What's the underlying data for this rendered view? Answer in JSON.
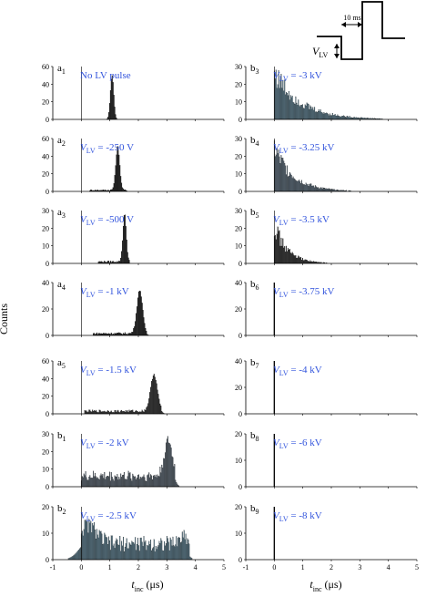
{
  "figure": {
    "ylabel": "Counts",
    "xlabel_main": "t",
    "xlabel_sub": "inc",
    "xlabel_unit": " (μs)",
    "inset": {
      "time_label": "10 ms",
      "voltage_label": "V",
      "voltage_sub": "LV"
    }
  },
  "chart_data": [
    {
      "type": "bar",
      "panel": "a",
      "index": "1",
      "annotation": "No LV pulse",
      "ylim": [
        0,
        60
      ],
      "yticks": [
        0,
        20,
        40,
        60
      ],
      "xlim": [
        -1,
        5
      ],
      "bar_color": "#111111",
      "peaks": [
        {
          "center": 1.08,
          "height": 50,
          "width": 0.06
        }
      ],
      "floor": {
        "from": 0.9,
        "to": 1.3,
        "level": 0
      }
    },
    {
      "type": "bar",
      "panel": "a",
      "index": "2",
      "annotation": "= -250 V",
      "ylim": [
        0,
        60
      ],
      "yticks": [
        0,
        20,
        40,
        60
      ],
      "xlim": [
        -1,
        5
      ],
      "bar_color": "#111111",
      "peaks": [
        {
          "center": 1.28,
          "height": 50,
          "width": 0.07
        }
      ],
      "floor": {
        "from": 0.3,
        "to": 1.6,
        "level": 1.5
      }
    },
    {
      "type": "bar",
      "panel": "a",
      "index": "3",
      "annotation": "= -500 V",
      "ylim": [
        0,
        30
      ],
      "yticks": [
        0,
        10,
        20,
        30
      ],
      "xlim": [
        -1,
        5
      ],
      "bar_color": "#111111",
      "peaks": [
        {
          "center": 1.52,
          "height": 27,
          "width": 0.06
        }
      ],
      "floor": {
        "from": 0.6,
        "to": 1.7,
        "level": 1
      }
    },
    {
      "type": "bar",
      "panel": "a",
      "index": "4",
      "annotation": "= -1 kV",
      "ylim": [
        0,
        40
      ],
      "yticks": [
        0,
        20,
        40
      ],
      "xlim": [
        -1,
        5
      ],
      "bar_color": "#111111",
      "peaks": [
        {
          "center": 2.05,
          "height": 33,
          "width": 0.1
        }
      ],
      "floor": {
        "from": 0.4,
        "to": 2.3,
        "level": 1.5
      }
    },
    {
      "type": "bar",
      "panel": "a",
      "index": "5",
      "annotation": "= -1.5 kV",
      "ylim": [
        0,
        60
      ],
      "yticks": [
        0,
        20,
        40,
        60
      ],
      "xlim": [
        -1,
        5
      ],
      "bar_color": "#222222",
      "peaks": [
        {
          "center": 2.55,
          "height": 42,
          "width": 0.12
        }
      ],
      "floor": {
        "from": 0.1,
        "to": 2.8,
        "level": 3
      }
    },
    {
      "type": "bar",
      "panel": "b",
      "index": "1",
      "annotation": "= -2 kV",
      "ylim": [
        0,
        30
      ],
      "yticks": [
        0,
        10,
        20,
        30
      ],
      "xlim": [
        -1,
        5
      ],
      "bar_color": "#4a5560",
      "peaks": [
        {
          "center": 3.05,
          "height": 20,
          "width": 0.14
        }
      ],
      "floor": {
        "from": 0,
        "to": 3.3,
        "level": 6
      }
    },
    {
      "type": "bar",
      "panel": "b",
      "index": "2",
      "annotation": "= -2.5 kV",
      "ylim": [
        0,
        20
      ],
      "yticks": [
        0,
        10,
        20
      ],
      "xlim": [
        -1,
        5
      ],
      "bar_color": "#4a6a7a",
      "peaks": [
        {
          "center": 0.25,
          "height": 7,
          "width": 0.3
        },
        {
          "center": 3.6,
          "height": 3,
          "width": 0.15
        }
      ],
      "floor": {
        "from": 0,
        "to": 3.8,
        "level": 6
      }
    },
    {
      "type": "bar",
      "panel": "b",
      "index": "3",
      "annotation": "= -3 kV",
      "ylim": [
        0,
        30
      ],
      "yticks": [
        0,
        10,
        20,
        30
      ],
      "xlim": [
        -1,
        5
      ],
      "bar_color": "#4a6a7a",
      "decay": {
        "from": 0,
        "to": 4,
        "start": 27,
        "tau": 0.9
      }
    },
    {
      "type": "bar",
      "panel": "b",
      "index": "4",
      "annotation": "= -3.25 kV",
      "ylim": [
        0,
        30
      ],
      "yticks": [
        0,
        10,
        20,
        30
      ],
      "xlim": [
        -1,
        5
      ],
      "bar_color": "#4a5a68",
      "decay": {
        "from": 0,
        "to": 3.3,
        "start": 25,
        "tau": 0.65
      }
    },
    {
      "type": "bar",
      "panel": "b",
      "index": "5",
      "annotation": "= -3.5 kV",
      "ylim": [
        0,
        30
      ],
      "yticks": [
        0,
        10,
        20,
        30
      ],
      "xlim": [
        -1,
        5
      ],
      "bar_color": "#222222",
      "decay": {
        "from": 0,
        "to": 2.5,
        "start": 22,
        "tau": 0.45
      }
    },
    {
      "type": "bar",
      "panel": "b",
      "index": "6",
      "annotation": "= -3.75 kV",
      "ylim": [
        0,
        40
      ],
      "yticks": [
        0,
        20,
        40
      ],
      "xlim": [
        -1,
        5
      ],
      "bar_color": "#111111",
      "spike": {
        "x": 0,
        "height": 40
      }
    },
    {
      "type": "bar",
      "panel": "b",
      "index": "7",
      "annotation": "= -4 kV",
      "ylim": [
        0,
        40
      ],
      "yticks": [
        0,
        20,
        40
      ],
      "xlim": [
        -1,
        5
      ],
      "bar_color": "#111111",
      "spike": {
        "x": 0,
        "height": 40
      }
    },
    {
      "type": "bar",
      "panel": "b",
      "index": "8",
      "annotation": "= -6 kV",
      "ylim": [
        0,
        20
      ],
      "yticks": [
        0,
        10,
        20
      ],
      "xlim": [
        -1,
        5
      ],
      "bar_color": "#111111",
      "spike": {
        "x": 0,
        "height": 20
      }
    },
    {
      "type": "bar",
      "panel": "b",
      "index": "9",
      "annotation": "= -8 kV",
      "ylim": [
        0,
        20
      ],
      "yticks": [
        0,
        10,
        20
      ],
      "xlim": [
        -1,
        5
      ],
      "bar_color": "#111111",
      "spike": {
        "x": 0,
        "height": 24
      }
    }
  ],
  "xticks": [
    -1,
    0,
    1,
    2,
    3,
    4,
    5
  ]
}
